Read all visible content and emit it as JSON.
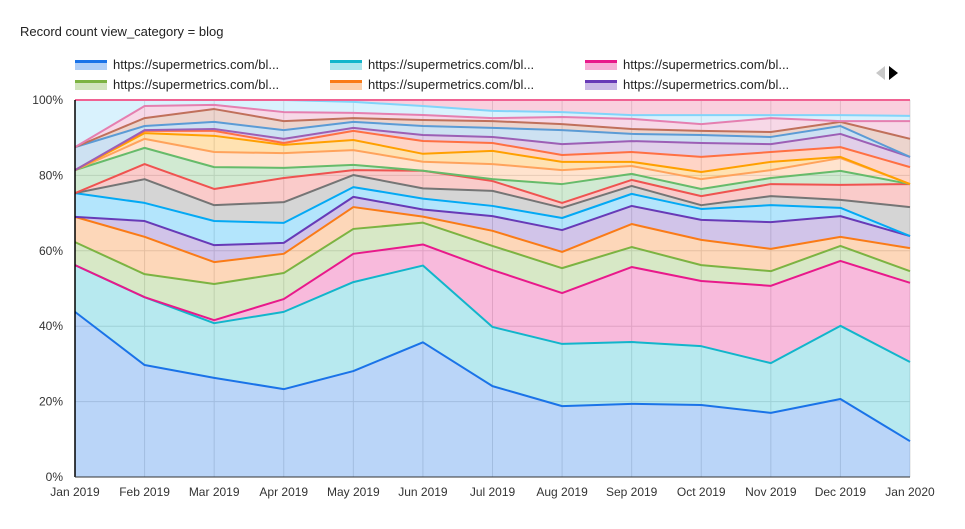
{
  "chart_data": {
    "type": "area",
    "stacking": "percent",
    "title": "Record count view_category = blog",
    "categories": [
      "Jan 2019",
      "Feb 2019",
      "Mar 2019",
      "Apr 2019",
      "May 2019",
      "Jun 2019",
      "Jul 2019",
      "Aug 2019",
      "Sep 2019",
      "Oct 2019",
      "Nov 2019",
      "Dec 2019",
      "Jan 2020"
    ],
    "y_ticks": [
      "0%",
      "20%",
      "40%",
      "60%",
      "80%",
      "100%"
    ],
    "ylim": [
      0,
      100
    ],
    "grid": true,
    "legend_placement": "top",
    "legend": [
      {
        "label": "https://supermetrics.com/bl...",
        "color": "#1a73e8"
      },
      {
        "label": "https://supermetrics.com/bl...",
        "color": "#12b5cb"
      },
      {
        "label": "https://supermetrics.com/bl...",
        "color": "#e8198b"
      },
      {
        "label": "https://supermetrics.com/bl...",
        "color": "#7cb342"
      },
      {
        "label": "https://supermetrics.com/bl...",
        "color": "#fa7b17"
      },
      {
        "label": "https://supermetrics.com/bl...",
        "color": "#673ab7"
      }
    ],
    "series": [
      {
        "color": "#1a73e8",
        "values": [
          43.8,
          29.7,
          26.3,
          23.3,
          28.1,
          35.8,
          24.1,
          18.8,
          19.4,
          19.1,
          17.0,
          20.7,
          9.5
        ]
      },
      {
        "color": "#12b5cb",
        "values": [
          12.4,
          18.0,
          14.5,
          20.5,
          23.6,
          20.4,
          15.7,
          16.5,
          16.4,
          15.6,
          13.2,
          19.4,
          21.0
        ]
      },
      {
        "color": "#e8198b",
        "values": [
          0,
          0,
          0.8,
          3.4,
          7.5,
          5.6,
          15.1,
          13.5,
          19.9,
          17.3,
          20.5,
          17.2,
          21.0
        ]
      },
      {
        "color": "#7cb342",
        "values": [
          6.1,
          6.1,
          9.6,
          6.9,
          6.6,
          5.8,
          6.4,
          6.6,
          5.3,
          4.2,
          3.9,
          4.0,
          3.1
        ]
      },
      {
        "color": "#fa7b17",
        "values": [
          6.7,
          9.9,
          5.8,
          5.1,
          5.8,
          1.6,
          4.0,
          4.3,
          6.1,
          6.7,
          5.9,
          2.4,
          6.1
        ]
      },
      {
        "color": "#673ab7",
        "values": [
          0,
          4.2,
          4.5,
          2.9,
          2.7,
          1.9,
          3.9,
          5.8,
          4.8,
          5.3,
          7.1,
          5.5,
          3.2
        ]
      },
      {
        "color": "#03a9f4",
        "values": [
          6.3,
          4.8,
          6.4,
          5.3,
          2.6,
          2.9,
          2.7,
          3.2,
          3.2,
          2.9,
          4.5,
          2.2,
          0
        ]
      },
      {
        "color": "#757575",
        "values": [
          0,
          6.3,
          4.2,
          5.5,
          3.2,
          2.7,
          4.0,
          2.7,
          2.1,
          1.0,
          2.4,
          2.1,
          7.7
        ]
      },
      {
        "color": "#ef5350",
        "values": [
          0,
          4.0,
          4.3,
          6.4,
          1.3,
          4.7,
          2.6,
          1.3,
          1.6,
          2.4,
          3.2,
          4.0,
          6.1
        ]
      },
      {
        "color": "#66bb6a",
        "values": [
          6.1,
          4.3,
          5.8,
          2.7,
          1.4,
          0,
          0.5,
          5.0,
          1.6,
          1.9,
          1.6,
          3.7,
          0
        ]
      },
      {
        "color": "#ffa35c",
        "values": [
          0,
          2.4,
          4.0,
          3.9,
          3.9,
          2.4,
          4.0,
          3.7,
          2.1,
          2.6,
          2.1,
          3.4,
          0
        ]
      },
      {
        "color": "#ffa000",
        "values": [
          0,
          1.5,
          4.3,
          2.2,
          2.7,
          2.1,
          3.5,
          2.2,
          1.1,
          1.9,
          2.2,
          0.3,
          0
        ]
      },
      {
        "color": "#ff7043",
        "values": [
          0,
          0.6,
          1.3,
          0.5,
          2.4,
          3.4,
          2.1,
          1.8,
          2.6,
          4.0,
          2.6,
          2.6,
          4.5
        ]
      },
      {
        "color": "#9c5fb5",
        "values": [
          0,
          0.2,
          0.5,
          1.1,
          0.8,
          1.6,
          1.6,
          2.9,
          2.9,
          3.7,
          2.1,
          3.5,
          2.7
        ]
      },
      {
        "color": "#5b9bd5",
        "values": [
          6.1,
          1.1,
          1.9,
          2.3,
          1.6,
          2.4,
          2.4,
          3.7,
          1.9,
          2.1,
          1.9,
          2.1,
          0
        ]
      },
      {
        "color": "#c0705b",
        "values": [
          0,
          2.1,
          3.4,
          2.4,
          1.0,
          1.6,
          1.8,
          1.6,
          1.3,
          1.1,
          1.3,
          1.1,
          4.8
        ]
      },
      {
        "color": "#e57fb0",
        "values": [
          0,
          3.2,
          1.1,
          2.4,
          1.4,
          1.3,
          0.8,
          1.9,
          2.7,
          1.8,
          3.7,
          0.2,
          4.7
        ]
      },
      {
        "color": "#81d4fa",
        "values": [
          12.5,
          1.6,
          1.3,
          3.2,
          2.9,
          2.4,
          1.9,
          1.3,
          1.0,
          2.4,
          0.8,
          1.6,
          1.4
        ]
      },
      {
        "color": "#f06292",
        "values": [
          0,
          0,
          0,
          0,
          0.5,
          1.6,
          2.9,
          3.2,
          4.0,
          4.0,
          4.0,
          4.0,
          4.2
        ]
      }
    ]
  }
}
